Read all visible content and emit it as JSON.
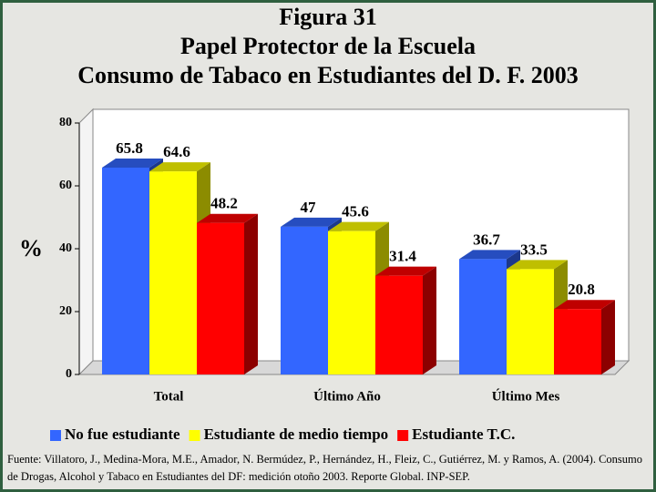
{
  "chart_data": {
    "type": "bar3d",
    "title": [
      "Figura 31",
      "Papel Protector de la Escuela",
      "Consumo de Tabaco en Estudiantes del D. F. 2003"
    ],
    "ylabel": "%",
    "categories": [
      "Total",
      "Último Año",
      "Último Mes"
    ],
    "series": [
      {
        "name": "No fue estudiante",
        "color": "#3366ff",
        "values": [
          65.8,
          47,
          36.7
        ]
      },
      {
        "name": "Estudiante de medio tiempo",
        "color": "#ffff00",
        "values": [
          64.6,
          45.6,
          33.5
        ]
      },
      {
        "name": "Estudiante T.C.",
        "color": "#ff0000",
        "values": [
          48.2,
          31.4,
          20.8
        ]
      }
    ],
    "ylim": [
      0,
      80
    ],
    "yticks": [
      0,
      20,
      40,
      60,
      80
    ],
    "legend": "bottom",
    "source": "Fuente: Villatoro, J., Medina-Mora, M.E., Amador, N. Bermúdez, P., Hernández, H., Fleiz, C., Gutiérrez, M. y Ramos, A. (2004). Consumo de Drogas, Alcohol y Tabaco en Estudiantes del DF: medición otoño 2003. Reporte Global. INP-SEP."
  }
}
